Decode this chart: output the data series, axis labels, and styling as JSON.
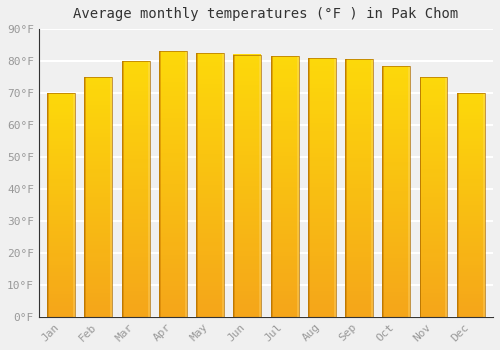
{
  "title": "Average monthly temperatures (°F ) in Pak Chom",
  "months": [
    "Jan",
    "Feb",
    "Mar",
    "Apr",
    "May",
    "Jun",
    "Jul",
    "Aug",
    "Sep",
    "Oct",
    "Nov",
    "Dec"
  ],
  "values": [
    70,
    75,
    80,
    83,
    82.5,
    82,
    81.5,
    81,
    80.5,
    78.5,
    75,
    70
  ],
  "bar_color_top": "#FFC72C",
  "bar_color_bottom": "#F5A623",
  "bar_color_left_edge": "#C87800",
  "bar_color_right_edge": "#FFD86B",
  "background_color": "#F0F0F0",
  "plot_bg_color": "#F0F0F0",
  "grid_color": "#FFFFFF",
  "ylim": [
    0,
    90
  ],
  "yticks": [
    0,
    10,
    20,
    30,
    40,
    50,
    60,
    70,
    80,
    90
  ],
  "ytick_labels": [
    "0°F",
    "10°F",
    "20°F",
    "30°F",
    "40°F",
    "50°F",
    "60°F",
    "70°F",
    "80°F",
    "90°F"
  ],
  "title_fontsize": 10,
  "tick_fontsize": 8,
  "font_family": "monospace",
  "tick_color": "#999999",
  "spine_color": "#333333"
}
